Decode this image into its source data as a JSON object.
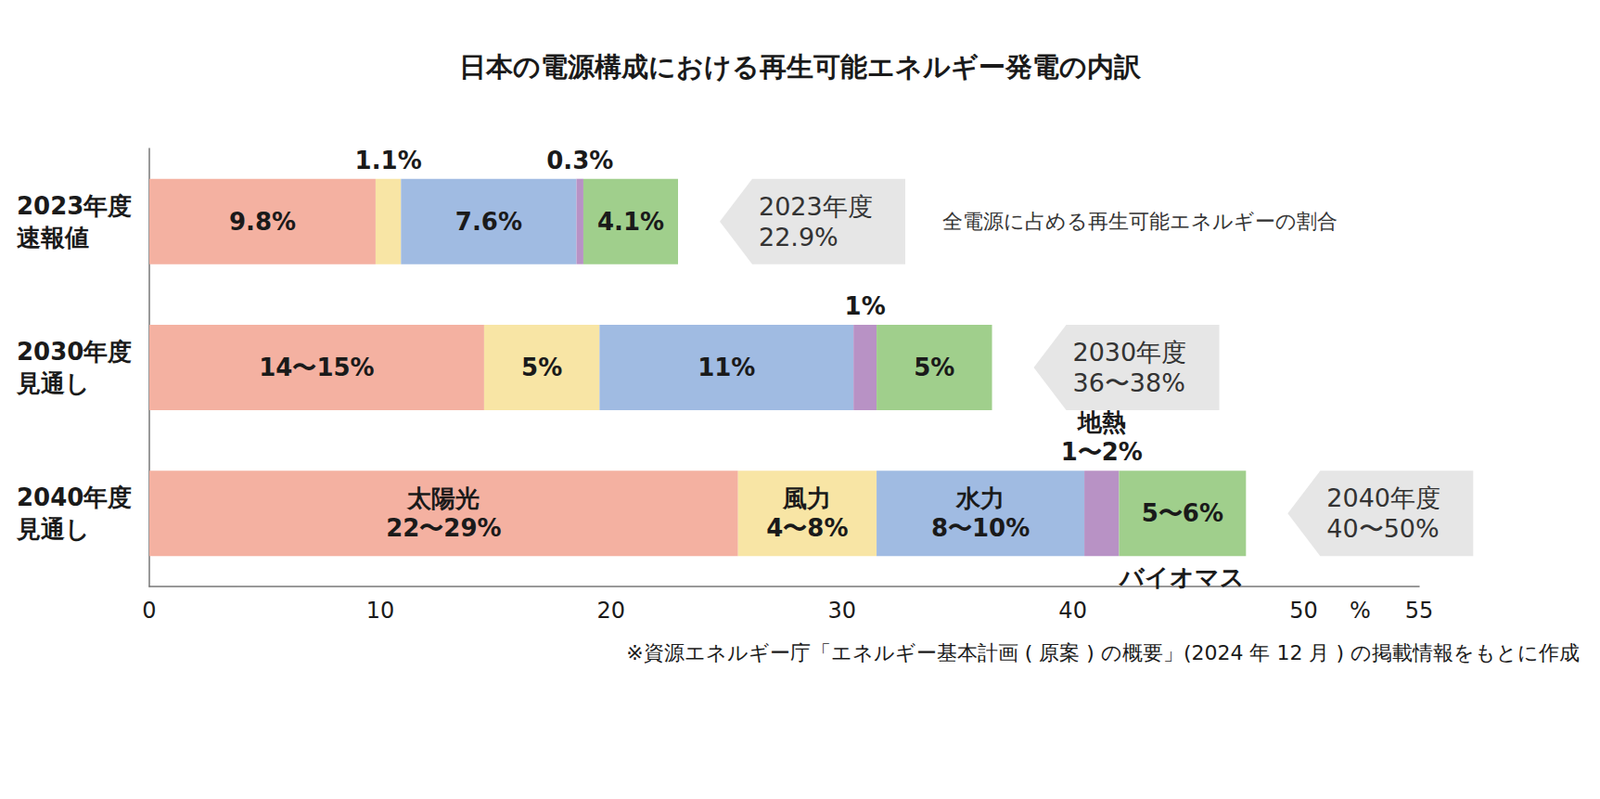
{
  "chart_data": {
    "type": "bar",
    "orientation": "horizontal",
    "stacked": true,
    "data_labels": true,
    "grid": false,
    "title": "日本の電源構成における再生可能エネルギー発電の内訳",
    "categories": [
      "2023年度\n速報値",
      "2030年度\n見通し",
      "2040年度\n見通し"
    ],
    "x_label": "%",
    "xlim": [
      0,
      55
    ],
    "xticks": [
      0,
      10,
      20,
      30,
      40,
      50
    ],
    "series": [
      {
        "name": "太陽光",
        "color": "#f4b1a1",
        "values": [
          9.8,
          14.5,
          25.5
        ],
        "value_labels": [
          "9.8%",
          "14〜15%",
          "22〜29%"
        ]
      },
      {
        "name": "風力",
        "color": "#f8e5a5",
        "values": [
          1.1,
          5,
          6
        ],
        "value_labels": [
          "1.1%",
          "5%",
          "4〜8%"
        ]
      },
      {
        "name": "水力",
        "color": "#a0bbe2",
        "values": [
          7.6,
          11,
          9
        ],
        "value_labels": [
          "7.6%",
          "11%",
          "8〜10%"
        ]
      },
      {
        "name": "地熱",
        "color": "#b892c5",
        "values": [
          0.3,
          1,
          1.5
        ],
        "value_labels": [
          "0.3%",
          "1%",
          "1〜2%"
        ]
      },
      {
        "name": "バイオマス",
        "color": "#a0cf8c",
        "values": [
          4.1,
          5,
          5.5
        ],
        "value_labels": [
          "4.1%",
          "5%",
          "5〜6%"
        ]
      }
    ],
    "total_labels": [
      "2023年度\n22.9%",
      "2030年度\n36〜38%",
      "2040年度\n40〜50%"
    ],
    "annotation": "全電源に占める再生可能エネルギーの割合",
    "source": "※資源エネルギー庁「エネルギー基本計画 ( 原案 ) の概要」(2024 年 12 月 ) の掲載情報をもとに作成"
  }
}
